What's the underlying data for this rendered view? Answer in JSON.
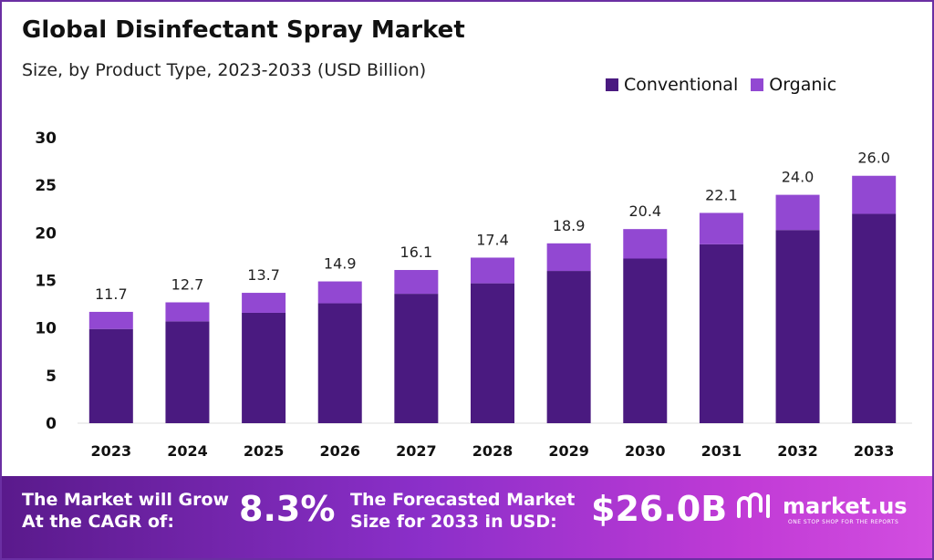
{
  "header": {
    "title": "Global Disinfectant Spray Market",
    "subtitle": "Size, by Product Type, 2023-2033 (USD Billion)"
  },
  "colors": {
    "conventional": "#4a1a80",
    "organic": "#9248d2",
    "brand": "#6b2fa3"
  },
  "chart_data": {
    "type": "bar",
    "stacked": true,
    "categories": [
      "2023",
      "2024",
      "2025",
      "2026",
      "2027",
      "2028",
      "2029",
      "2030",
      "2031",
      "2032",
      "2033"
    ],
    "series": [
      {
        "name": "Conventional",
        "values": [
          9.9,
          10.7,
          11.6,
          12.6,
          13.6,
          14.7,
          16.0,
          17.3,
          18.8,
          20.3,
          22.0
        ]
      },
      {
        "name": "Organic",
        "values": [
          1.8,
          2.0,
          2.1,
          2.3,
          2.5,
          2.7,
          2.9,
          3.1,
          3.3,
          3.7,
          4.0
        ]
      }
    ],
    "totals": [
      "11.7",
      "12.7",
      "13.7",
      "14.9",
      "16.1",
      "17.4",
      "18.9",
      "20.4",
      "22.1",
      "24.0",
      "26.0"
    ],
    "yticks": [
      "0",
      "5",
      "10",
      "15",
      "20",
      "25",
      "30"
    ],
    "ylim": [
      0,
      30
    ],
    "grid": false,
    "legend_position": "top-right"
  },
  "footer": {
    "cagr_label_line1": "The Market will Grow",
    "cagr_label_line2": "At the CAGR of:",
    "cagr_value": "8.3%",
    "forecast_label_line1": "The Forecasted Market",
    "forecast_label_line2": "Size for 2033 in USD:",
    "forecast_value": "$26.0B",
    "brand_name": "market.us",
    "brand_tagline": "ONE STOP SHOP FOR THE REPORTS"
  }
}
